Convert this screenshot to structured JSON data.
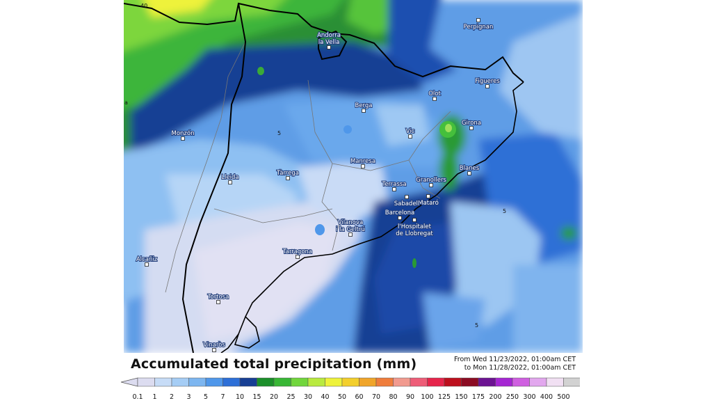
{
  "map": {
    "cities": [
      {
        "name": "Perpignan"
      },
      {
        "name": "Andorra\nla Vella"
      },
      {
        "name": "Figueres"
      },
      {
        "name": "Olot"
      },
      {
        "name": "Berga"
      },
      {
        "name": "Girona"
      },
      {
        "name": "Vic"
      },
      {
        "name": "Monzón"
      },
      {
        "name": "Manresa"
      },
      {
        "name": "Blanes"
      },
      {
        "name": "Tàrrega"
      },
      {
        "name": "Lleida"
      },
      {
        "name": "Granollers"
      },
      {
        "name": "Terrassa"
      },
      {
        "name": "Mataró"
      },
      {
        "name": "Sabadell"
      },
      {
        "name": "Barcelona"
      },
      {
        "name": "l'Hospitalet\nde Llobregat"
      },
      {
        "name": "Vilanova\ni la Geltrú"
      },
      {
        "name": "Tarragona"
      },
      {
        "name": "Alcañiz"
      },
      {
        "name": "Tortosa"
      },
      {
        "name": "Vinaròs"
      }
    ],
    "contour_labels": [
      "40",
      "5",
      "5",
      "5"
    ],
    "edge_label": "a"
  },
  "title": "Accumulated total precipitation (mm)",
  "period": {
    "from": "From Wed 11/23/2022, 01:00am CET",
    "to": "to Mon 11/28/2022, 01:00am CET"
  },
  "legend": {
    "unit": "mm",
    "ticks": [
      "0.1",
      "1",
      "2",
      "3",
      "5",
      "7",
      "10",
      "15",
      "20",
      "25",
      "30",
      "40",
      "50",
      "60",
      "70",
      "80",
      "90",
      "100",
      "125",
      "150",
      "175",
      "200",
      "250",
      "300",
      "400",
      "500"
    ],
    "colors": [
      "#dcdcf0",
      "#c7dcf7",
      "#a5cdf5",
      "#7db6f0",
      "#4f97ea",
      "#2d6fd7",
      "#173f94",
      "#1b8f2a",
      "#38b735",
      "#71d63c",
      "#b9ea3f",
      "#eef23a",
      "#f3cf2c",
      "#f0a52a",
      "#ef7d3c",
      "#f19a8f",
      "#ee5d78",
      "#e6244b",
      "#bd0f1d",
      "#8c0c23",
      "#6c1392",
      "#a526d3",
      "#cf5fe0",
      "#e2a7ee",
      "#f1e0f3",
      "#d2d2d2"
    ]
  }
}
